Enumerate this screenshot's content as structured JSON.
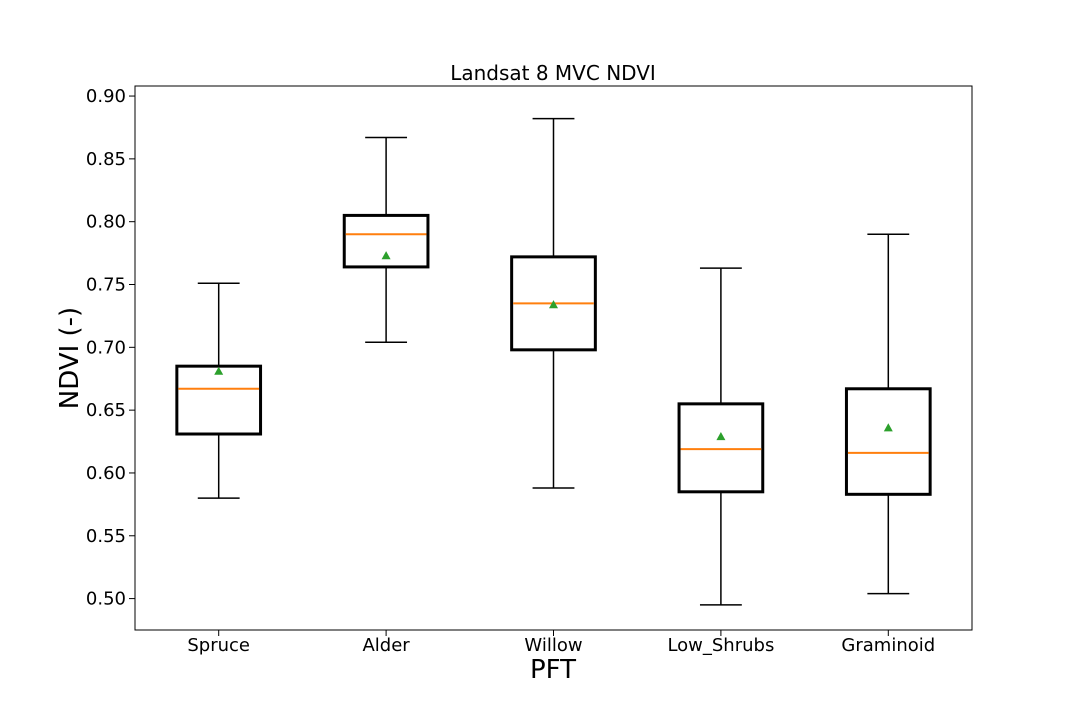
{
  "chart_data": {
    "type": "box",
    "title": "Landsat 8 MVC NDVI",
    "xlabel": "PFT",
    "ylabel": "NDVI (-)",
    "ylim": [
      0.475,
      0.908
    ],
    "yticks": [
      "0.50",
      "0.55",
      "0.60",
      "0.65",
      "0.70",
      "0.75",
      "0.80",
      "0.85",
      "0.90"
    ],
    "categories": [
      "Spruce",
      "Alder",
      "Willow",
      "Low_Shrubs",
      "Graminoid"
    ],
    "boxes": [
      {
        "whisker_low": 0.58,
        "q1": 0.631,
        "median": 0.667,
        "q3": 0.685,
        "whisker_high": 0.751,
        "mean": 0.681
      },
      {
        "whisker_low": 0.704,
        "q1": 0.764,
        "median": 0.79,
        "q3": 0.805,
        "whisker_high": 0.867,
        "mean": 0.773
      },
      {
        "whisker_low": 0.588,
        "q1": 0.698,
        "median": 0.735,
        "q3": 0.772,
        "whisker_high": 0.882,
        "mean": 0.734
      },
      {
        "whisker_low": 0.495,
        "q1": 0.585,
        "median": 0.619,
        "q3": 0.655,
        "whisker_high": 0.763,
        "mean": 0.629
      },
      {
        "whisker_low": 0.504,
        "q1": 0.583,
        "median": 0.616,
        "q3": 0.667,
        "whisker_high": 0.79,
        "mean": 0.636
      }
    ],
    "colors": {
      "box": "#000000",
      "median": "#ff7f0e",
      "mean": "#2ca02c"
    },
    "grid": false,
    "legend": "none"
  }
}
